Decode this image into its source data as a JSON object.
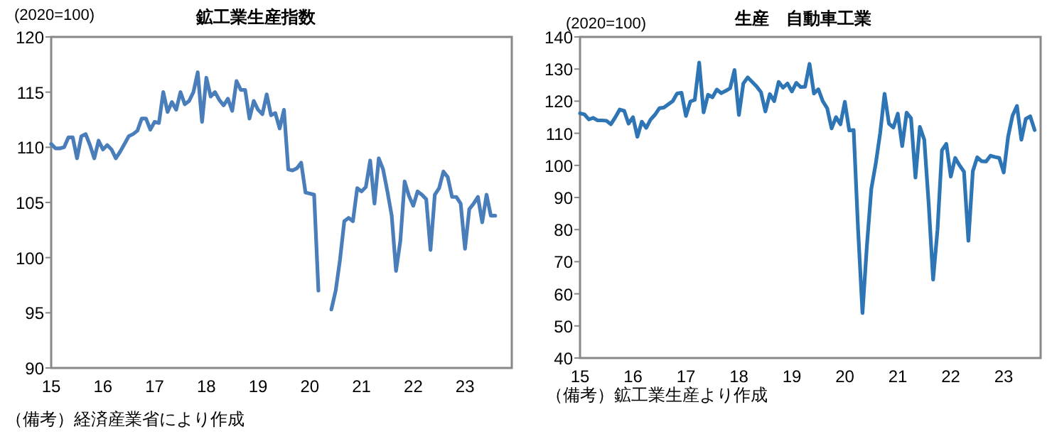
{
  "chart_data": [
    {
      "type": "line",
      "title": "鉱工業生産指数",
      "ylabel": "(2020=100)",
      "annotations": [
        "（備考）経済産業省により作成"
      ],
      "x": [
        "2015-01",
        "2015-02",
        "2015-03",
        "2015-04",
        "2015-05",
        "2015-06",
        "2015-07",
        "2015-08",
        "2015-09",
        "2015-10",
        "2015-11",
        "2015-12",
        "2016-01",
        "2016-02",
        "2016-03",
        "2016-04",
        "2016-05",
        "2016-06",
        "2016-07",
        "2016-08",
        "2016-09",
        "2016-10",
        "2016-11",
        "2016-12",
        "2017-01",
        "2017-02",
        "2017-03",
        "2017-04",
        "2017-05",
        "2017-06",
        "2017-07",
        "2017-08",
        "2017-09",
        "2017-10",
        "2017-11",
        "2017-12",
        "2018-01",
        "2018-02",
        "2018-03",
        "2018-04",
        "2018-05",
        "2018-06",
        "2018-07",
        "2018-08",
        "2018-09",
        "2018-10",
        "2018-11",
        "2018-12",
        "2019-01",
        "2019-02",
        "2019-03",
        "2019-04",
        "2019-05",
        "2019-06",
        "2019-07",
        "2019-08",
        "2019-09",
        "2019-10",
        "2019-11",
        "2019-12",
        "2020-01",
        "2020-02",
        "2020-03",
        "2020-04",
        "2020-05",
        "2020-06",
        "2020-07",
        "2020-08",
        "2020-09",
        "2020-10",
        "2020-11",
        "2020-12",
        "2021-01",
        "2021-02",
        "2021-03",
        "2021-04",
        "2021-05",
        "2021-06",
        "2021-07",
        "2021-08",
        "2021-09",
        "2021-10",
        "2021-11",
        "2021-12",
        "2022-01",
        "2022-02",
        "2022-03",
        "2022-04",
        "2022-05",
        "2022-06",
        "2022-07",
        "2022-08",
        "2022-09",
        "2022-10",
        "2022-11",
        "2022-12",
        "2023-01",
        "2023-02",
        "2023-03",
        "2023-04",
        "2023-05",
        "2023-06",
        "2023-07",
        "2023-08"
      ],
      "series": [
        {
          "color": "#4a7ebb",
          "values": [
            110.3,
            109.9,
            109.9,
            110.0,
            110.9,
            110.9,
            109.0,
            111.0,
            111.2,
            110.2,
            109.0,
            110.6,
            109.8,
            110.2,
            109.8,
            109.0,
            109.6,
            110.3,
            111.0,
            111.2,
            111.5,
            112.6,
            112.6,
            111.6,
            112.3,
            112.2,
            115.0,
            113.2,
            114.1,
            113.4,
            115.0,
            113.9,
            114.2,
            115.0,
            116.8,
            112.3,
            116.3,
            114.6,
            115.0,
            114.3,
            113.8,
            114.4,
            113.3,
            116.0,
            115.2,
            115.2,
            112.6,
            114.2,
            113.4,
            113.0,
            114.8,
            112.9,
            113.1,
            111.7,
            113.4,
            108.0,
            107.9,
            108.1,
            108.6,
            105.9,
            105.8,
            105.7,
            97.0,
            null,
            null,
            95.3,
            97.0,
            99.8,
            103.3,
            103.6,
            103.3,
            106.3,
            106.0,
            106.4,
            108.8,
            104.9,
            109.0,
            108.0,
            106.0,
            103.8,
            98.8,
            101.5,
            106.9,
            105.6,
            104.7,
            106.0,
            105.7,
            105.3,
            100.7,
            105.7,
            106.3,
            107.8,
            107.3,
            105.5,
            105.5,
            104.9,
            100.8,
            104.4,
            104.9,
            105.5,
            103.2,
            105.7,
            103.8,
            103.8
          ]
        }
      ],
      "xlim": [
        "2015-01-01",
        "2023-11-27"
      ],
      "xticks": [
        {
          "value": "2015-01",
          "label": "15"
        },
        {
          "value": "2016-01",
          "label": "16"
        },
        {
          "value": "2017-01",
          "label": "17"
        },
        {
          "value": "2018-01",
          "label": "18"
        },
        {
          "value": "2019-01",
          "label": "19"
        },
        {
          "value": "2020-01",
          "label": "20"
        },
        {
          "value": "2021-01",
          "label": "21"
        },
        {
          "value": "2022-01",
          "label": "22"
        },
        {
          "value": "2023-01",
          "label": "23"
        }
      ],
      "ylim": [
        90,
        120
      ],
      "yticks": [
        90,
        95,
        100,
        105,
        110,
        115,
        120
      ]
    },
    {
      "type": "line",
      "title": "生産　自動車工業",
      "ylabel": "(2020=100)",
      "annotations": [
        "（備考）鉱工業生産より作成"
      ],
      "x": [
        "2015-01",
        "2015-02",
        "2015-03",
        "2015-04",
        "2015-05",
        "2015-06",
        "2015-07",
        "2015-08",
        "2015-09",
        "2015-10",
        "2015-11",
        "2015-12",
        "2016-01",
        "2016-02",
        "2016-03",
        "2016-04",
        "2016-05",
        "2016-06",
        "2016-07",
        "2016-08",
        "2016-09",
        "2016-10",
        "2016-11",
        "2016-12",
        "2017-01",
        "2017-02",
        "2017-03",
        "2017-04",
        "2017-05",
        "2017-06",
        "2017-07",
        "2017-08",
        "2017-09",
        "2017-10",
        "2017-11",
        "2017-12",
        "2018-01",
        "2018-02",
        "2018-03",
        "2018-04",
        "2018-05",
        "2018-06",
        "2018-07",
        "2018-08",
        "2018-09",
        "2018-10",
        "2018-11",
        "2018-12",
        "2019-01",
        "2019-02",
        "2019-03",
        "2019-04",
        "2019-05",
        "2019-06",
        "2019-07",
        "2019-08",
        "2019-09",
        "2019-10",
        "2019-11",
        "2019-12",
        "2020-01",
        "2020-02",
        "2020-03",
        "2020-04",
        "2020-05",
        "2020-06",
        "2020-07",
        "2020-08",
        "2020-09",
        "2020-10",
        "2020-11",
        "2020-12",
        "2021-01",
        "2021-02",
        "2021-03",
        "2021-04",
        "2021-05",
        "2021-06",
        "2021-07",
        "2021-08",
        "2021-09",
        "2021-10",
        "2021-11",
        "2021-12",
        "2022-01",
        "2022-02",
        "2022-03",
        "2022-04",
        "2022-05",
        "2022-06",
        "2022-07",
        "2022-08",
        "2022-09",
        "2022-10",
        "2022-11",
        "2022-12",
        "2023-01",
        "2023-02",
        "2023-03",
        "2023-04",
        "2023-05",
        "2023-06",
        "2023-07",
        "2023-08"
      ],
      "series": [
        {
          "color": "#2e75b6",
          "values": [
            116.2,
            115.9,
            114.3,
            114.8,
            114.0,
            114.0,
            113.9,
            112.8,
            115.0,
            117.4,
            117.0,
            113.0,
            115.0,
            108.9,
            113.6,
            111.7,
            114.3,
            115.8,
            117.8,
            118.0,
            119.0,
            120.0,
            122.4,
            122.6,
            115.4,
            119.9,
            120.4,
            132.0,
            116.5,
            122.0,
            121.2,
            123.6,
            122.5,
            123.2,
            124.0,
            129.7,
            115.7,
            125.5,
            127.4,
            126.0,
            124.6,
            122.8,
            116.8,
            122.2,
            120.0,
            126.0,
            124.2,
            125.5,
            123.0,
            125.7,
            124.4,
            124.5,
            131.6,
            122.4,
            123.7,
            120.0,
            117.8,
            111.5,
            115.0,
            112.8,
            119.8,
            110.9,
            111.0,
            80,
            54,
            75,
            92.7,
            100.5,
            110,
            122.3,
            113.0,
            111.8,
            116.1,
            106.0,
            116.4,
            114.7,
            96.2,
            112.0,
            108.0,
            88,
            64.4,
            80,
            104.7,
            106.7,
            96.5,
            102.3,
            100.0,
            98.0,
            76.5,
            98.2,
            102.5,
            101.3,
            101.2,
            103.0,
            102.6,
            102.3,
            97.8,
            109,
            115.5,
            118.5,
            108.0,
            114.5,
            115.3,
            111.0
          ]
        }
      ],
      "xlim": [
        "2015-01-01",
        "2023-09-12"
      ],
      "xticks": [
        {
          "value": "2015-01",
          "label": "15"
        },
        {
          "value": "2016-01",
          "label": "16"
        },
        {
          "value": "2017-01",
          "label": "17"
        },
        {
          "value": "2018-01",
          "label": "18"
        },
        {
          "value": "2019-01",
          "label": "19"
        },
        {
          "value": "2020-01",
          "label": "20"
        },
        {
          "value": "2021-01",
          "label": "21"
        },
        {
          "value": "2022-01",
          "label": "22"
        },
        {
          "value": "2023-01",
          "label": "23"
        }
      ],
      "ylim": [
        40,
        140
      ],
      "yticks": [
        40,
        50,
        60,
        70,
        80,
        90,
        100,
        110,
        120,
        130,
        140
      ]
    }
  ]
}
